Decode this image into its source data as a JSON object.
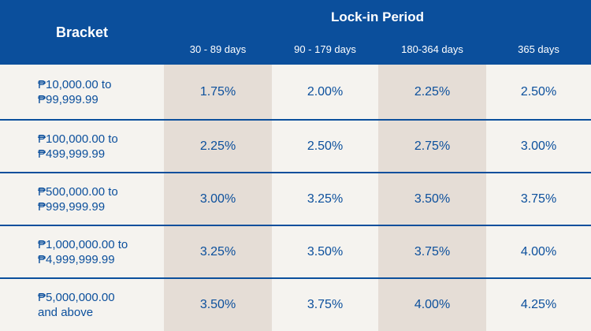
{
  "table": {
    "bracket_header": "Bracket",
    "period_header": "Lock-in Period",
    "columns": [
      "30 - 89 days",
      "90 - 179 days",
      "180-364 days",
      "365 days"
    ],
    "rows": [
      {
        "bracket": [
          "₱10,000.00 to",
          "₱99,999.99"
        ],
        "rates": [
          "1.75%",
          "2.00%",
          "2.25%",
          "2.50%"
        ]
      },
      {
        "bracket": [
          "₱100,000.00 to",
          "₱499,999.99"
        ],
        "rates": [
          "2.25%",
          "2.50%",
          "2.75%",
          "3.00%"
        ]
      },
      {
        "bracket": [
          "₱500,000.00 to",
          "₱999,999.99"
        ],
        "rates": [
          "3.00%",
          "3.25%",
          "3.50%",
          "3.75%"
        ]
      },
      {
        "bracket": [
          "₱1,000,000.00 to",
          "₱4,999,999.99"
        ],
        "rates": [
          "3.25%",
          "3.50%",
          "3.75%",
          "4.00%"
        ]
      },
      {
        "bracket": [
          "₱5,000,000.00",
          "and above"
        ],
        "rates": [
          "3.50%",
          "3.75%",
          "4.00%",
          "4.25%"
        ]
      }
    ]
  }
}
